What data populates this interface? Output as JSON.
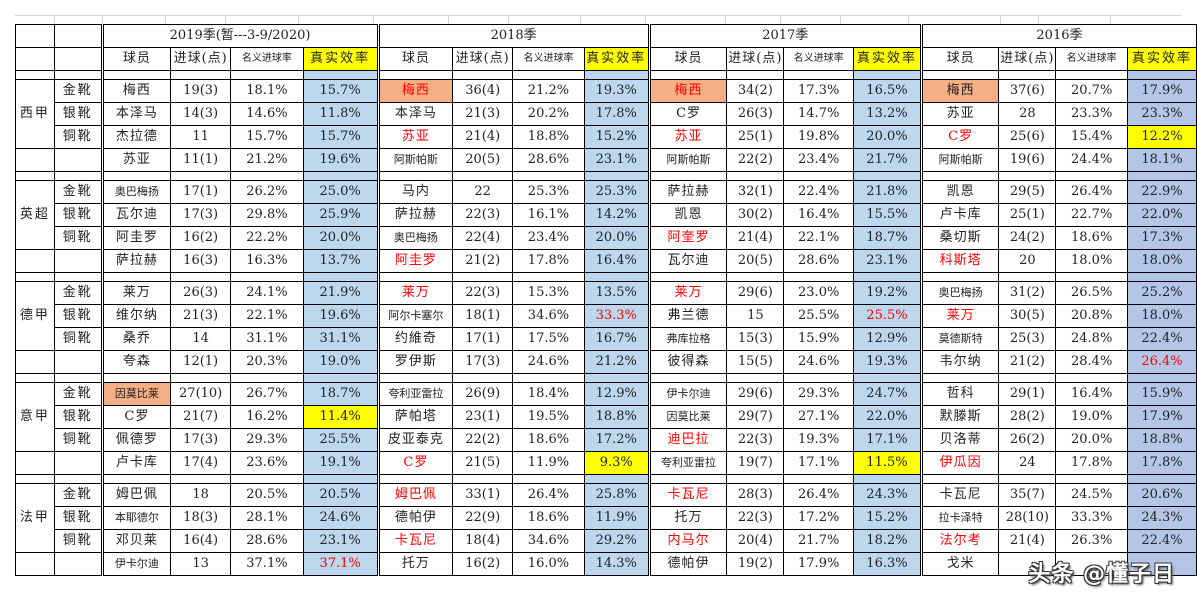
{
  "header": {
    "seasons": [
      "2019季(暂---3-9/2020)",
      "2018季",
      "2017季",
      "2016季"
    ],
    "columns": {
      "player": "球员",
      "goals": "进球(点)",
      "nominal": "名义进球率",
      "real": "真实效率"
    }
  },
  "leagues": [
    {
      "name": "西甲",
      "boots": [
        "金靴",
        "银靴",
        "铜靴",
        ""
      ],
      "seasons": [
        [
          {
            "player": "梅西",
            "goals": "19(3)",
            "nominal": "18.1%",
            "real": "15.7%"
          },
          {
            "player": "本泽马",
            "goals": "14(3)",
            "nominal": "14.6%",
            "real": "11.8%"
          },
          {
            "player": "杰拉德",
            "goals": "11",
            "nominal": "15.7%",
            "real": "15.7%"
          },
          {
            "player": "苏亚",
            "goals": "11(1)",
            "nominal": "21.2%",
            "real": "19.6%"
          }
        ],
        [
          {
            "player": "梅西",
            "goals": "36(4)",
            "nominal": "21.2%",
            "real": "19.3%",
            "style": "orange-red"
          },
          {
            "player": "本泽马",
            "goals": "21(3)",
            "nominal": "20.2%",
            "real": "17.8%"
          },
          {
            "player": "苏亚",
            "goals": "21(4)",
            "nominal": "18.8%",
            "real": "15.2%",
            "style": "red"
          },
          {
            "player": "阿斯帕斯",
            "goals": "20(5)",
            "nominal": "28.6%",
            "real": "23.1%",
            "small": true
          }
        ],
        [
          {
            "player": "梅西",
            "goals": "34(2)",
            "nominal": "17.3%",
            "real": "16.5%",
            "style": "orange-red"
          },
          {
            "player": "C罗",
            "goals": "26(3)",
            "nominal": "14.7%",
            "real": "13.2%"
          },
          {
            "player": "苏亚",
            "goals": "25(1)",
            "nominal": "19.8%",
            "real": "20.0%",
            "style": "red"
          },
          {
            "player": "阿斯帕斯",
            "goals": "22(2)",
            "nominal": "23.4%",
            "real": "21.7%",
            "small": true
          }
        ],
        [
          {
            "player": "梅西",
            "goals": "37(6)",
            "nominal": "20.7%",
            "real": "17.9%",
            "style": "orange"
          },
          {
            "player": "苏亚",
            "goals": "28",
            "nominal": "23.3%",
            "real": "23.3%"
          },
          {
            "player": "C罗",
            "goals": "25(6)",
            "nominal": "15.4%",
            "real": "12.2%",
            "style": "red",
            "real_style": "yellow"
          },
          {
            "player": "阿斯帕斯",
            "goals": "19(6)",
            "nominal": "24.4%",
            "real": "18.1%",
            "small": true
          }
        ]
      ]
    },
    {
      "name": "英超",
      "boots": [
        "金靴",
        "银靴",
        "铜靴",
        ""
      ],
      "seasons": [
        [
          {
            "player": "奥巴梅扬",
            "goals": "17(1)",
            "nominal": "26.2%",
            "real": "25.0%",
            "small": true
          },
          {
            "player": "瓦尔迪",
            "goals": "17(3)",
            "nominal": "29.8%",
            "real": "25.9%"
          },
          {
            "player": "阿圭罗",
            "goals": "16(2)",
            "nominal": "22.2%",
            "real": "20.0%"
          },
          {
            "player": "萨拉赫",
            "goals": "16(3)",
            "nominal": "16.3%",
            "real": "13.7%"
          }
        ],
        [
          {
            "player": "马内",
            "goals": "22",
            "nominal": "25.3%",
            "real": "25.3%"
          },
          {
            "player": "萨拉赫",
            "goals": "22(3)",
            "nominal": "16.1%",
            "real": "14.2%"
          },
          {
            "player": "奥巴梅扬",
            "goals": "22(4)",
            "nominal": "23.4%",
            "real": "20.0%",
            "small": true
          },
          {
            "player": "阿圭罗",
            "goals": "21(2)",
            "nominal": "17.8%",
            "real": "16.4%",
            "style": "red"
          }
        ],
        [
          {
            "player": "萨拉赫",
            "goals": "32(1)",
            "nominal": "22.4%",
            "real": "21.8%"
          },
          {
            "player": "凯恩",
            "goals": "30(2)",
            "nominal": "16.4%",
            "real": "15.5%"
          },
          {
            "player": "阿奎罗",
            "goals": "21(4)",
            "nominal": "22.1%",
            "real": "18.7%",
            "style": "red"
          },
          {
            "player": "瓦尔迪",
            "goals": "20(5)",
            "nominal": "28.6%",
            "real": "23.1%"
          }
        ],
        [
          {
            "player": "凯恩",
            "goals": "29(5)",
            "nominal": "26.4%",
            "real": "22.9%"
          },
          {
            "player": "卢卡库",
            "goals": "25(1)",
            "nominal": "22.7%",
            "real": "22.0%"
          },
          {
            "player": "桑切斯",
            "goals": "24(2)",
            "nominal": "18.6%",
            "real": "17.3%"
          },
          {
            "player": "科斯塔",
            "goals": "20",
            "nominal": "18.0%",
            "real": "18.0%",
            "style": "red"
          }
        ]
      ]
    },
    {
      "name": "德甲",
      "boots": [
        "金靴",
        "银靴",
        "铜靴",
        ""
      ],
      "seasons": [
        [
          {
            "player": "莱万",
            "goals": "26(3)",
            "nominal": "24.1%",
            "real": "21.9%"
          },
          {
            "player": "维尔纳",
            "goals": "21(3)",
            "nominal": "22.1%",
            "real": "19.6%"
          },
          {
            "player": "桑乔",
            "goals": "14",
            "nominal": "31.1%",
            "real": "31.1%"
          },
          {
            "player": "夸森",
            "goals": "12(1)",
            "nominal": "20.3%",
            "real": "19.0%"
          }
        ],
        [
          {
            "player": "莱万",
            "goals": "22(3)",
            "nominal": "15.3%",
            "real": "13.5%",
            "style": "red"
          },
          {
            "player": "阿尔卡塞尔",
            "goals": "18(1)",
            "nominal": "34.6%",
            "real": "33.3%",
            "small": true,
            "real_red": true
          },
          {
            "player": "约維奇",
            "goals": "17(1)",
            "nominal": "17.5%",
            "real": "16.7%"
          },
          {
            "player": "罗伊斯",
            "goals": "17(3)",
            "nominal": "24.6%",
            "real": "21.2%"
          }
        ],
        [
          {
            "player": "莱万",
            "goals": "29(6)",
            "nominal": "23.0%",
            "real": "19.2%",
            "style": "red"
          },
          {
            "player": "弗兰德",
            "goals": "15",
            "nominal": "25.5%",
            "real": "25.5%",
            "real_red": true
          },
          {
            "player": "弗库拉格",
            "goals": "15(3)",
            "nominal": "15.9%",
            "real": "12.9%",
            "small": true
          },
          {
            "player": "彼得森",
            "goals": "15(5)",
            "nominal": "24.6%",
            "real": "19.3%"
          }
        ],
        [
          {
            "player": "奥巴梅扬",
            "goals": "31(2)",
            "nominal": "26.5%",
            "real": "25.2%",
            "small": true
          },
          {
            "player": "莱万",
            "goals": "30(5)",
            "nominal": "20.8%",
            "real": "18.0%",
            "style": "red"
          },
          {
            "player": "莫德斯特",
            "goals": "25(3)",
            "nominal": "24.8%",
            "real": "22.4%",
            "small": true
          },
          {
            "player": "韦尔纳",
            "goals": "21(2)",
            "nominal": "28.4%",
            "real": "26.4%",
            "real_red": true
          }
        ]
      ]
    },
    {
      "name": "意甲",
      "boots": [
        "金靴",
        "银靴",
        "铜靴",
        ""
      ],
      "seasons": [
        [
          {
            "player": "因莫比莱",
            "goals": "27(10)",
            "nominal": "26.7%",
            "real": "18.7%",
            "style": "orange",
            "small": true
          },
          {
            "player": "C罗",
            "goals": "21(7)",
            "nominal": "16.2%",
            "real": "11.4%",
            "real_style": "yellow"
          },
          {
            "player": "佩德罗",
            "goals": "17(3)",
            "nominal": "29.3%",
            "real": "25.5%"
          },
          {
            "player": "卢卡库",
            "goals": "17(4)",
            "nominal": "23.6%",
            "real": "19.1%"
          }
        ],
        [
          {
            "player": "夸利亚雷拉",
            "goals": "26(9)",
            "nominal": "18.4%",
            "real": "12.9%",
            "small": true
          },
          {
            "player": "萨帕塔",
            "goals": "23(1)",
            "nominal": "19.5%",
            "real": "18.8%"
          },
          {
            "player": "皮亚泰克",
            "goals": "22(2)",
            "nominal": "18.6%",
            "real": "17.2%"
          },
          {
            "player": "C罗",
            "goals": "21(5)",
            "nominal": "11.9%",
            "real": "9.3%",
            "style": "red",
            "real_style": "yellow"
          }
        ],
        [
          {
            "player": "伊卡尔迪",
            "goals": "29(6)",
            "nominal": "29.3%",
            "real": "24.7%",
            "small": true
          },
          {
            "player": "因莫比莱",
            "goals": "29(7)",
            "nominal": "27.1%",
            "real": "22.0%",
            "small": true
          },
          {
            "player": "迪巴拉",
            "goals": "22(3)",
            "nominal": "19.3%",
            "real": "17.1%",
            "style": "red"
          },
          {
            "player": "夸利亚雷拉",
            "goals": "19(7)",
            "nominal": "17.1%",
            "real": "11.5%",
            "small": true,
            "real_style": "yellow"
          }
        ],
        [
          {
            "player": "哲科",
            "goals": "29(1)",
            "nominal": "16.4%",
            "real": "15.9%"
          },
          {
            "player": "默滕斯",
            "goals": "28(2)",
            "nominal": "19.0%",
            "real": "17.9%"
          },
          {
            "player": "贝洛蒂",
            "goals": "26(2)",
            "nominal": "20.0%",
            "real": "18.8%"
          },
          {
            "player": "伊瓜因",
            "goals": "24",
            "nominal": "17.8%",
            "real": "17.8%",
            "style": "red"
          }
        ]
      ]
    },
    {
      "name": "法甲",
      "boots": [
        "金靴",
        "银靴",
        "铜靴",
        ""
      ],
      "seasons": [
        [
          {
            "player": "姆巴佩",
            "goals": "18",
            "nominal": "20.5%",
            "real": "20.5%"
          },
          {
            "player": "本耶德尔",
            "goals": "18(3)",
            "nominal": "28.1%",
            "real": "24.6%",
            "small": true
          },
          {
            "player": "邓贝莱",
            "goals": "16(4)",
            "nominal": "28.6%",
            "real": "23.1%"
          },
          {
            "player": "伊卡尔迪",
            "goals": "13",
            "nominal": "37.1%",
            "real": "37.1%",
            "small": true,
            "real_red": true
          }
        ],
        [
          {
            "player": "姆巴佩",
            "goals": "33(1)",
            "nominal": "26.4%",
            "real": "25.8%",
            "style": "red"
          },
          {
            "player": "德帕伊",
            "goals": "22(9)",
            "nominal": "18.6%",
            "real": "11.9%"
          },
          {
            "player": "卡瓦尼",
            "goals": "18(4)",
            "nominal": "34.6%",
            "real": "29.2%",
            "style": "red"
          },
          {
            "player": "托万",
            "goals": "16(2)",
            "nominal": "16.0%",
            "real": "14.3%"
          }
        ],
        [
          {
            "player": "卡瓦尼",
            "goals": "28(3)",
            "nominal": "26.4%",
            "real": "24.3%",
            "style": "red"
          },
          {
            "player": "托万",
            "goals": "22(3)",
            "nominal": "17.2%",
            "real": "15.2%"
          },
          {
            "player": "内马尔",
            "goals": "20(4)",
            "nominal": "21.7%",
            "real": "18.2%",
            "style": "red"
          },
          {
            "player": "德帕伊",
            "goals": "19(2)",
            "nominal": "17.9%",
            "real": "16.3%"
          }
        ],
        [
          {
            "player": "卡瓦尼",
            "goals": "35(7)",
            "nominal": "24.5%",
            "real": "20.6%"
          },
          {
            "player": "拉卡泽特",
            "goals": "28(10)",
            "nominal": "33.3%",
            "real": "24.3%",
            "small": true
          },
          {
            "player": "法尔考",
            "goals": "21(4)",
            "nominal": "26.3%",
            "real": "22.4%",
            "style": "red"
          },
          {
            "player": "戈米",
            "goals": "",
            "nominal": "",
            "real": ""
          }
        ]
      ]
    }
  ],
  "watermark": "头条 @懂子日"
}
